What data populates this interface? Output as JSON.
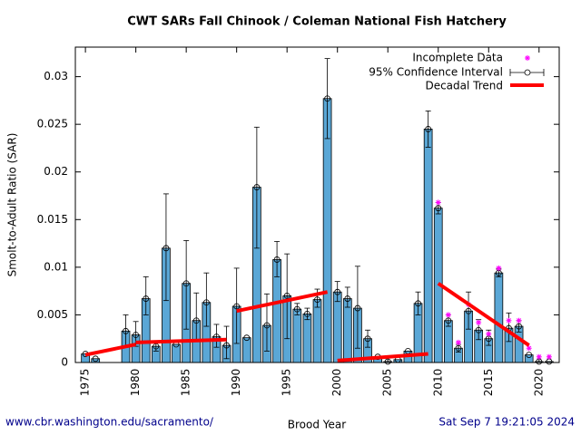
{
  "chart_data": {
    "type": "bar",
    "title": "CWT SARs Fall Chinook  / Coleman National Fish Hatchery",
    "x_label": "Brood Year",
    "y_label": "Smolt-to-Adult Ratio (SAR)",
    "footer_left": "www.cbr.washington.edu/sacramento/",
    "footer_right": "Sat Sep  7 19:21:05 2024",
    "color": "#5aa7d6",
    "x": [
      1975,
      1976,
      1979,
      1980,
      1981,
      1982,
      1983,
      1984,
      1985,
      1986,
      1987,
      1988,
      1989,
      1990,
      1991,
      1992,
      1993,
      1994,
      1995,
      1996,
      1997,
      1998,
      1999,
      2000,
      2001,
      2002,
      2003,
      2004,
      2005,
      2006,
      2007,
      2008,
      2009,
      2010,
      2011,
      2012,
      2013,
      2014,
      2015,
      2016,
      2017,
      2018,
      2019,
      2020,
      2021
    ],
    "values": [
      0.0009,
      0.0004,
      0.0033,
      0.0029,
      0.0067,
      0.0017,
      0.012,
      0.0019,
      0.0083,
      0.0044,
      0.0063,
      0.0027,
      0.0018,
      0.0059,
      0.0026,
      0.0184,
      0.0039,
      0.0108,
      0.007,
      0.0056,
      0.0051,
      0.0066,
      0.0277,
      0.0074,
      0.0067,
      0.0057,
      0.0025,
      0.0006,
      0.0001,
      0.0003,
      0.0012,
      0.0062,
      0.0245,
      0.0162,
      0.0044,
      0.0015,
      0.0054,
      0.0034,
      0.0025,
      0.0094,
      0.0036,
      0.0038,
      0.0008,
      0.0001,
      0.0001
    ],
    "confidence_interval": {
      "name": "95% Confidence Interval",
      "low": [
        null,
        null,
        0.0016,
        0.0017,
        0.005,
        0.0012,
        0.0065,
        null,
        0.0035,
        0.0024,
        0.0038,
        0.0016,
        0.0004,
        0.002,
        null,
        0.012,
        0.0012,
        0.009,
        0.0025,
        0.005,
        0.0045,
        0.0058,
        0.0235,
        0.0064,
        0.0058,
        0.0015,
        0.0016,
        null,
        null,
        null,
        null,
        0.005,
        0.0226,
        0.0156,
        0.0038,
        0.0011,
        0.0035,
        0.0024,
        0.0018,
        0.009,
        0.0022,
        0.0032,
        null,
        null,
        null
      ],
      "high": [
        null,
        null,
        0.005,
        0.0043,
        0.009,
        0.0022,
        0.0177,
        null,
        0.0128,
        0.0073,
        0.0094,
        0.004,
        0.0038,
        0.0099,
        null,
        0.0247,
        0.0072,
        0.0127,
        0.0114,
        0.0062,
        0.0057,
        0.0077,
        0.0319,
        0.0085,
        0.0079,
        0.0101,
        0.0034,
        null,
        null,
        null,
        null,
        0.0074,
        0.0264,
        0.0168,
        0.005,
        0.0019,
        0.0074,
        0.0045,
        0.0034,
        0.0098,
        0.0052,
        0.0044,
        null,
        null,
        null
      ]
    },
    "incomplete": {
      "name": "Incomplete Data",
      "color": "#ff00ff",
      "x": [
        2010,
        2011,
        2012,
        2013,
        2014,
        2015,
        2016,
        2017,
        2018,
        2019,
        2020,
        2021
      ],
      "values": [
        0.0168,
        0.005,
        0.0021,
        0.0061,
        0.0042,
        0.003,
        0.0099,
        0.0044,
        0.0044,
        0.0015,
        0.0006,
        0.0006
      ]
    },
    "trend": {
      "name": "Decadal Trend",
      "color": "#ff0000",
      "segments": [
        {
          "x": [
            1975,
            1980
          ],
          "values": [
            0.0008,
            0.0019
          ]
        },
        {
          "x": [
            1980,
            1989
          ],
          "values": [
            0.0021,
            0.0024
          ]
        },
        {
          "x": [
            1990,
            1999
          ],
          "values": [
            0.0054,
            0.0074
          ]
        },
        {
          "x": [
            2000,
            2009
          ],
          "values": [
            0.0002,
            0.0009
          ]
        },
        {
          "x": [
            2010,
            2019
          ],
          "values": [
            0.0083,
            0.0018
          ]
        }
      ]
    },
    "xlim": [
      1974,
      2022
    ],
    "ylim": [
      0,
      0.0331
    ],
    "xticks": [
      1975,
      1980,
      1985,
      1990,
      1995,
      2000,
      2005,
      2010,
      2015,
      2020
    ],
    "yticks": [
      0,
      0.005,
      0.01,
      0.015,
      0.02,
      0.025,
      0.03
    ]
  }
}
